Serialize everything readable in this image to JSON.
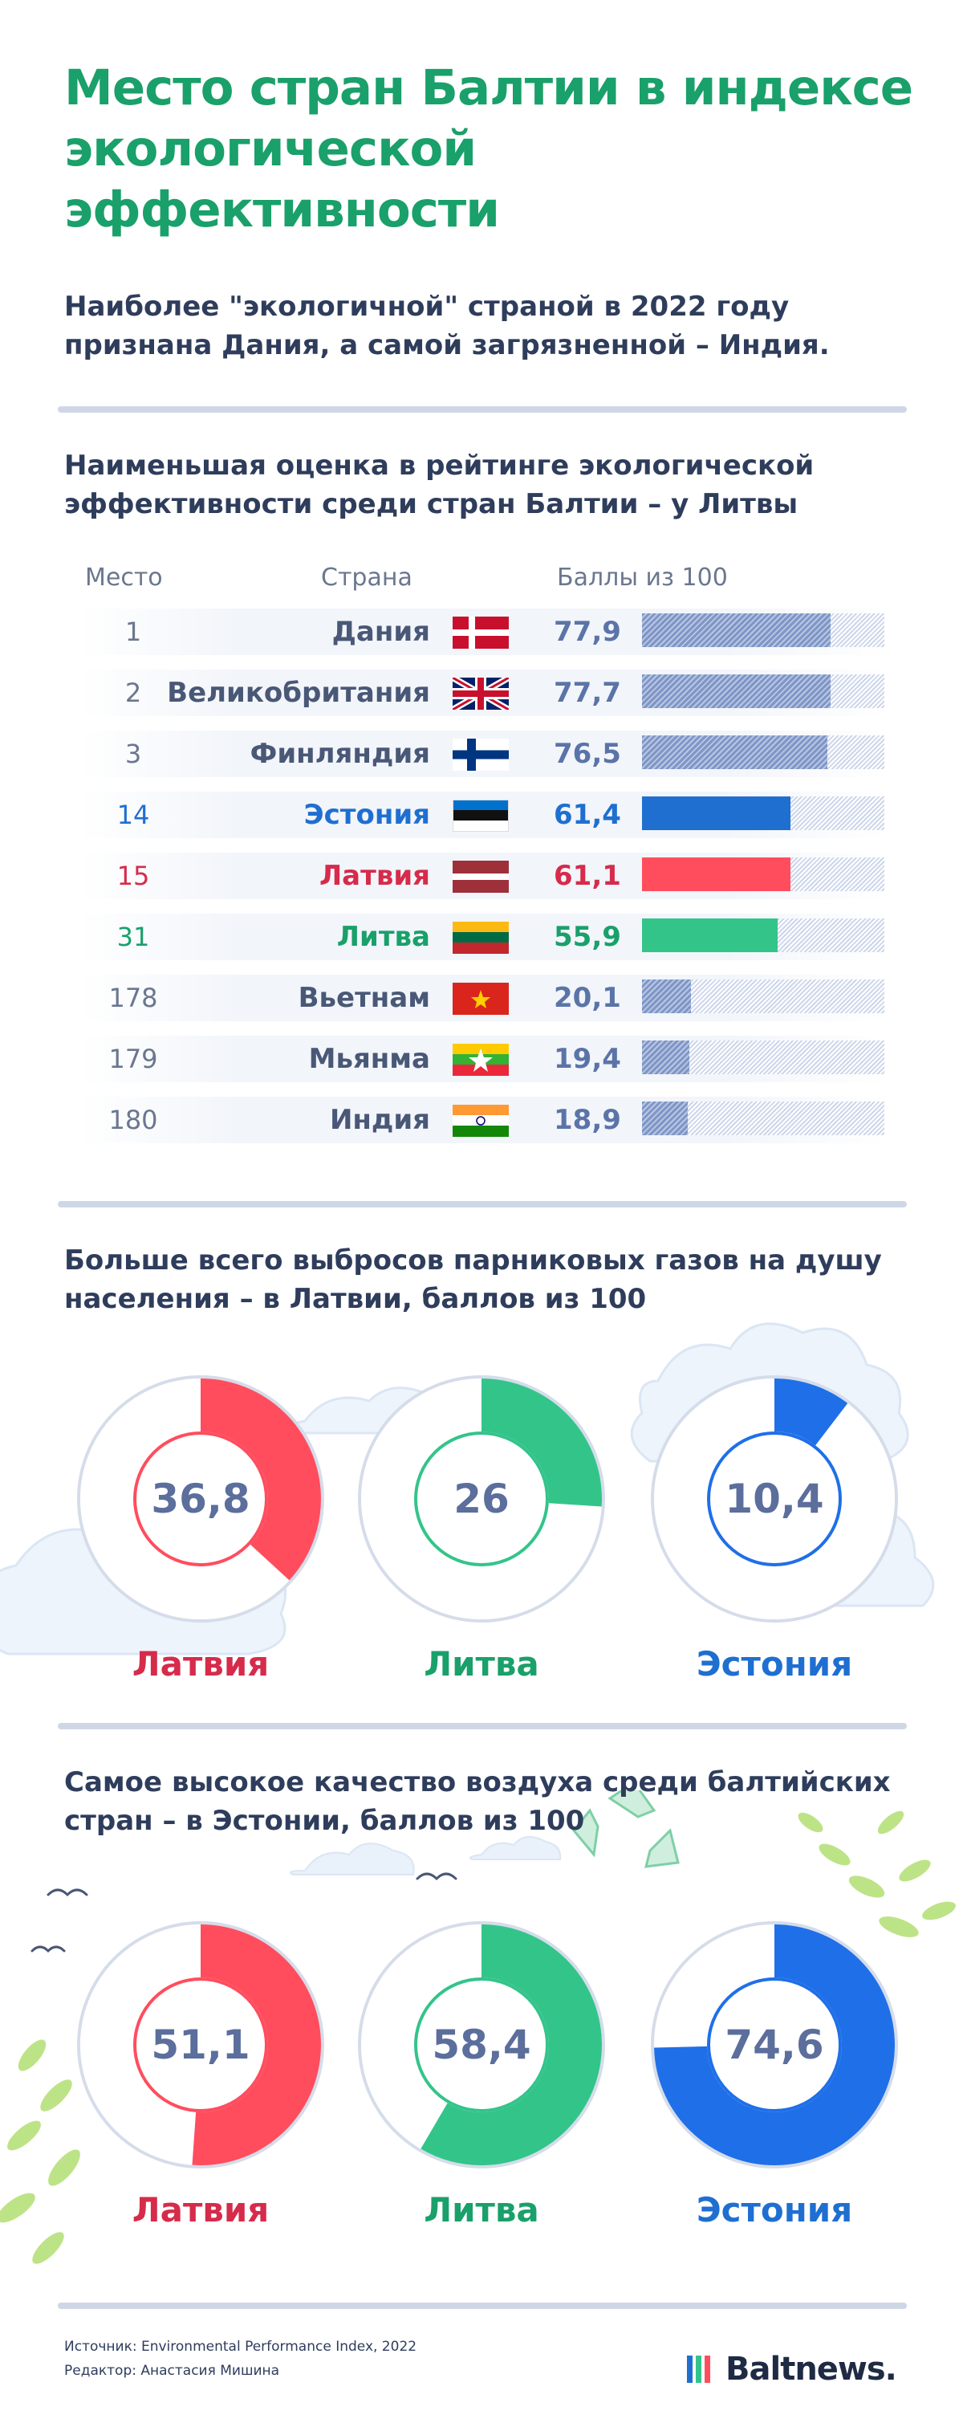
{
  "title": "Место стран Балтии в индексе экологической эффективности",
  "subtitle": "Наиболее \"экологичной\" страной в 2022 году признана Дания, а самой загрязненной – Индия.",
  "colors": {
    "green": "#1aa06a",
    "red": "#ff4d5e",
    "blue": "#1f6fd1",
    "bar_neutral": "#7f96c6",
    "ring_track": "#dde3ef"
  },
  "ranking": {
    "section_title": "Наименьшая оценка в рейтинге экологической эффективности среди стран Балтии – у Литвы",
    "headers": {
      "rank": "Место",
      "country": "Страна",
      "score": "Баллы из 100"
    }
  },
  "emissions": {
    "section_title": "Больше всего выбросов парниковых газов на душу населения – в Латвии, баллов из 100"
  },
  "air_quality": {
    "section_title": "Самое высокое качество воздуха среди балтийских стран – в Эстонии, баллов из 100"
  },
  "chart_data": [
    {
      "type": "bar",
      "orientation": "horizontal",
      "ylim": [
        0,
        100
      ],
      "columns": [
        "Место",
        "Страна",
        "Баллы из 100"
      ],
      "rows": [
        {
          "rank": "1",
          "country": "Дания",
          "value": 77.9,
          "label": "77,9",
          "flag": "denmark-flag",
          "style": "neutral"
        },
        {
          "rank": "2",
          "country": "Великобритания",
          "value": 77.7,
          "label": "77,7",
          "flag": "uk-flag",
          "style": "neutral"
        },
        {
          "rank": "3",
          "country": "Финляндия",
          "value": 76.5,
          "label": "76,5",
          "flag": "finland-flag",
          "style": "neutral"
        },
        {
          "rank": "14",
          "country": "Эстония",
          "value": 61.4,
          "label": "61,4",
          "flag": "estonia-flag",
          "style": "estonia"
        },
        {
          "rank": "15",
          "country": "Латвия",
          "value": 61.1,
          "label": "61,1",
          "flag": "latvia-flag",
          "style": "latvia"
        },
        {
          "rank": "31",
          "country": "Литва",
          "value": 55.9,
          "label": "55,9",
          "flag": "lithuania-flag",
          "style": "lithuania"
        },
        {
          "rank": "178",
          "country": "Вьетнам",
          "value": 20.1,
          "label": "20,1",
          "flag": "vietnam-flag",
          "style": "neutral"
        },
        {
          "rank": "179",
          "country": "Мьянма",
          "value": 19.4,
          "label": "19,4",
          "flag": "myanmar-flag",
          "style": "neutral"
        },
        {
          "rank": "180",
          "country": "Индия",
          "value": 18.9,
          "label": "18,9",
          "flag": "india-flag",
          "style": "neutral"
        }
      ]
    },
    {
      "type": "pie",
      "variant": "donut",
      "max": 100,
      "items": [
        {
          "country": "Латвия",
          "value": 36.8,
          "label": "36,8",
          "color": "#ff4d5e",
          "label_color": "#d62b4b"
        },
        {
          "country": "Литва",
          "value": 26,
          "label": "26",
          "color": "#33c48a",
          "label_color": "#1aa06a"
        },
        {
          "country": "Эстония",
          "value": 10.4,
          "label": "10,4",
          "color": "#1f6fe8",
          "label_color": "#1f6fd1"
        }
      ]
    },
    {
      "type": "pie",
      "variant": "donut",
      "max": 100,
      "items": [
        {
          "country": "Латвия",
          "value": 51.1,
          "label": "51,1",
          "color": "#ff4d5e",
          "label_color": "#d62b4b"
        },
        {
          "country": "Литва",
          "value": 58.4,
          "label": "58,4",
          "color": "#33c48a",
          "label_color": "#1aa06a"
        },
        {
          "country": "Эстония",
          "value": 74.6,
          "label": "74,6",
          "color": "#1f6fe8",
          "label_color": "#1f6fd1"
        }
      ]
    }
  ],
  "footer": {
    "source": "Источник: Environmental Performance Index, 2022",
    "editor": "Редактор: Анастасия Мишина",
    "brand": "Baltnews."
  }
}
